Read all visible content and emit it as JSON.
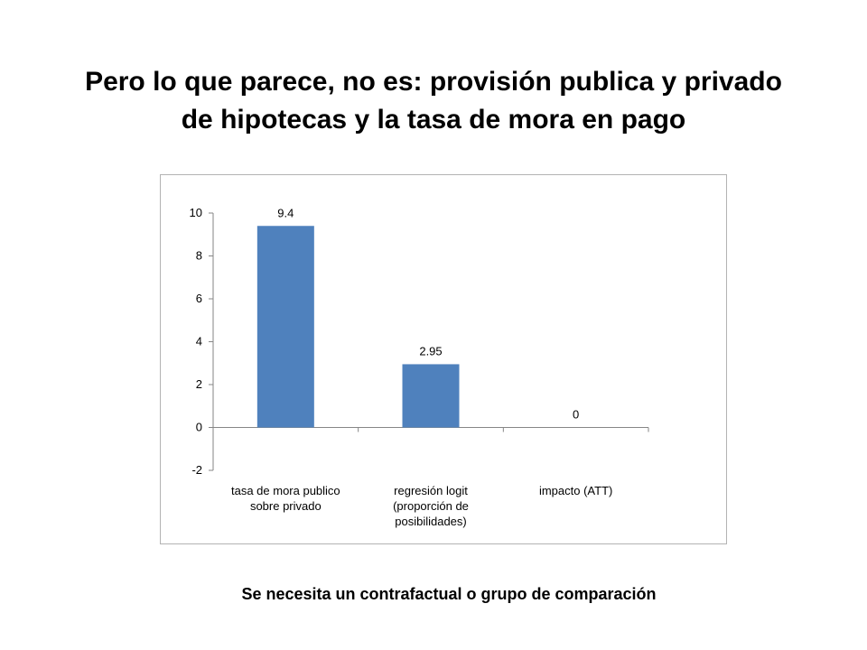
{
  "slide": {
    "title_line1": "Pero lo que parece, no es: provisión publica y privado",
    "title_line2": "de hipotecas y la tasa de mora en pago",
    "footnote": "Se necesita un contrafactual o grupo de comparación"
  },
  "chart_data": {
    "type": "bar",
    "categories": [
      [
        "tasa de mora publico",
        "sobre privado"
      ],
      [
        "regresión logit",
        "(proporción de",
        "posibilidades)"
      ],
      [
        "impacto (ATT)"
      ]
    ],
    "values": [
      9.4,
      2.95,
      0
    ],
    "data_labels": [
      "9.4",
      "2.95",
      "0"
    ],
    "ylim": [
      -2,
      10
    ],
    "yticks": [
      -2,
      0,
      2,
      4,
      6,
      8,
      10
    ],
    "bar_color": "#4f81bd",
    "axis_color": "#868686",
    "grid": false,
    "legend": "none"
  }
}
